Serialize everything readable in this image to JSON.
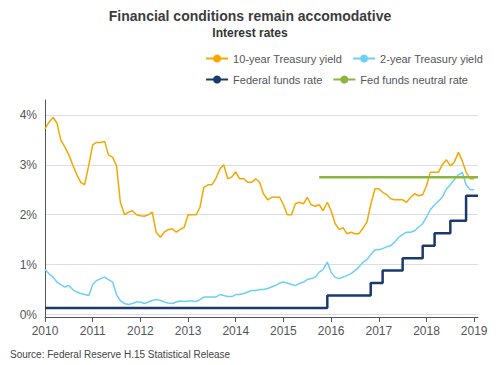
{
  "chart_data": {
    "type": "line",
    "title": "Financial conditions remain accomodative",
    "subtitle": "Interest rates",
    "annotation": "Source: Federal Reserve H.15 Statistical Release",
    "xlim": [
      2010.0,
      2019.08
    ],
    "xticks": [
      2010,
      2011,
      2012,
      2013,
      2014,
      2015,
      2016,
      2017,
      2018,
      2019
    ],
    "ylim": [
      -0.05,
      4.3
    ],
    "yticks": [
      {
        "value": 0,
        "label": "0%"
      },
      {
        "value": 1,
        "label": "1%"
      },
      {
        "value": 2,
        "label": "2%"
      },
      {
        "value": 3,
        "label": "3%"
      },
      {
        "value": 4,
        "label": "4%"
      }
    ],
    "grid": true,
    "legend": "upper right",
    "series": [
      {
        "name": "10-year Treasury yield",
        "color": "#f5a800",
        "x": [
          2010.0,
          2010.08,
          2010.17,
          2010.25,
          2010.33,
          2010.42,
          2010.5,
          2010.58,
          2010.67,
          2010.75,
          2010.83,
          2010.92,
          2011.0,
          2011.08,
          2011.17,
          2011.25,
          2011.33,
          2011.42,
          2011.5,
          2011.58,
          2011.67,
          2011.75,
          2011.83,
          2011.92,
          2012.0,
          2012.08,
          2012.17,
          2012.25,
          2012.33,
          2012.42,
          2012.5,
          2012.58,
          2012.67,
          2012.75,
          2012.83,
          2012.92,
          2013.0,
          2013.08,
          2013.17,
          2013.25,
          2013.33,
          2013.42,
          2013.5,
          2013.58,
          2013.67,
          2013.75,
          2013.83,
          2013.92,
          2014.0,
          2014.08,
          2014.17,
          2014.25,
          2014.33,
          2014.42,
          2014.5,
          2014.58,
          2014.67,
          2014.75,
          2014.83,
          2014.92,
          2015.0,
          2015.08,
          2015.17,
          2015.25,
          2015.33,
          2015.42,
          2015.5,
          2015.58,
          2015.67,
          2015.75,
          2015.83,
          2015.92,
          2016.0,
          2016.08,
          2016.17,
          2016.25,
          2016.33,
          2016.42,
          2016.5,
          2016.58,
          2016.67,
          2016.75,
          2016.83,
          2016.92,
          2017.0,
          2017.08,
          2017.17,
          2017.25,
          2017.33,
          2017.42,
          2017.5,
          2017.58,
          2017.67,
          2017.75,
          2017.83,
          2017.92,
          2018.0,
          2018.08,
          2018.17,
          2018.25,
          2018.33,
          2018.42,
          2018.5,
          2018.58,
          2018.67,
          2018.75,
          2018.83,
          2018.92,
          2019.0
        ],
        "values": [
          3.72,
          3.85,
          3.95,
          3.84,
          3.5,
          3.35,
          3.2,
          3.0,
          2.8,
          2.65,
          2.6,
          3.0,
          3.4,
          3.45,
          3.45,
          3.47,
          3.2,
          3.15,
          2.98,
          2.25,
          2.0,
          2.05,
          2.08,
          2.0,
          1.98,
          1.97,
          2.0,
          2.05,
          1.65,
          1.55,
          1.65,
          1.7,
          1.72,
          1.65,
          1.7,
          1.75,
          2.0,
          2.0,
          2.0,
          2.15,
          2.55,
          2.6,
          2.6,
          2.72,
          2.92,
          3.0,
          2.72,
          2.76,
          2.86,
          2.72,
          2.72,
          2.65,
          2.65,
          2.72,
          2.65,
          2.42,
          2.3,
          2.35,
          2.35,
          2.35,
          2.2,
          2.0,
          2.0,
          2.22,
          2.25,
          2.22,
          2.35,
          2.2,
          2.17,
          2.2,
          2.08,
          2.25,
          2.08,
          1.83,
          1.7,
          1.74,
          1.62,
          1.65,
          1.62,
          1.62,
          1.73,
          1.85,
          2.2,
          2.52,
          2.52,
          2.45,
          2.4,
          2.32,
          2.3,
          2.3,
          2.3,
          2.25,
          2.35,
          2.42,
          2.38,
          2.4,
          2.58,
          2.85,
          2.85,
          2.85,
          3.0,
          3.1,
          2.98,
          3.05,
          3.25,
          3.08,
          2.85,
          2.72,
          2.72
        ]
      },
      {
        "name": "2-year Treasury yield",
        "color": "#6ecff6",
        "x": [
          2010.0,
          2010.08,
          2010.17,
          2010.25,
          2010.33,
          2010.42,
          2010.5,
          2010.58,
          2010.67,
          2010.75,
          2010.83,
          2010.92,
          2011.0,
          2011.08,
          2011.17,
          2011.25,
          2011.33,
          2011.42,
          2011.5,
          2011.58,
          2011.67,
          2011.75,
          2011.83,
          2011.92,
          2012.0,
          2012.08,
          2012.17,
          2012.25,
          2012.33,
          2012.42,
          2012.5,
          2012.58,
          2012.67,
          2012.75,
          2012.83,
          2012.92,
          2013.0,
          2013.08,
          2013.17,
          2013.25,
          2013.33,
          2013.42,
          2013.5,
          2013.58,
          2013.67,
          2013.75,
          2013.83,
          2013.92,
          2014.0,
          2014.08,
          2014.17,
          2014.25,
          2014.33,
          2014.42,
          2014.5,
          2014.58,
          2014.67,
          2014.75,
          2014.83,
          2014.92,
          2015.0,
          2015.08,
          2015.17,
          2015.25,
          2015.33,
          2015.42,
          2015.5,
          2015.58,
          2015.67,
          2015.75,
          2015.83,
          2015.92,
          2016.0,
          2016.08,
          2016.17,
          2016.25,
          2016.33,
          2016.42,
          2016.5,
          2016.58,
          2016.67,
          2016.75,
          2016.83,
          2016.92,
          2017.0,
          2017.08,
          2017.17,
          2017.25,
          2017.33,
          2017.42,
          2017.5,
          2017.58,
          2017.67,
          2017.75,
          2017.83,
          2017.92,
          2018.0,
          2018.08,
          2018.17,
          2018.25,
          2018.33,
          2018.42,
          2018.5,
          2018.58,
          2018.67,
          2018.75,
          2018.83,
          2018.92,
          2019.0
        ],
        "values": [
          0.9,
          0.82,
          0.75,
          0.65,
          0.6,
          0.55,
          0.58,
          0.5,
          0.45,
          0.42,
          0.4,
          0.38,
          0.6,
          0.68,
          0.72,
          0.75,
          0.7,
          0.65,
          0.4,
          0.28,
          0.22,
          0.2,
          0.22,
          0.25,
          0.25,
          0.22,
          0.25,
          0.28,
          0.3,
          0.28,
          0.25,
          0.23,
          0.22,
          0.25,
          0.27,
          0.26,
          0.27,
          0.27,
          0.26,
          0.3,
          0.35,
          0.35,
          0.35,
          0.35,
          0.4,
          0.38,
          0.36,
          0.36,
          0.4,
          0.4,
          0.42,
          0.45,
          0.48,
          0.48,
          0.5,
          0.5,
          0.52,
          0.55,
          0.58,
          0.63,
          0.65,
          0.63,
          0.6,
          0.58,
          0.62,
          0.65,
          0.7,
          0.72,
          0.75,
          0.85,
          0.9,
          1.05,
          0.85,
          0.75,
          0.72,
          0.75,
          0.78,
          0.82,
          0.88,
          0.95,
          1.05,
          1.1,
          1.2,
          1.3,
          1.3,
          1.32,
          1.36,
          1.38,
          1.45,
          1.55,
          1.6,
          1.65,
          1.65,
          1.68,
          1.75,
          1.82,
          1.95,
          2.1,
          2.2,
          2.27,
          2.35,
          2.52,
          2.6,
          2.7,
          2.8,
          2.85,
          2.6,
          2.5,
          2.5
        ]
      },
      {
        "name": "Federal funds rate",
        "color": "#1a3a6b",
        "x": [
          2010.0,
          2015.92,
          2015.92,
          2016.83,
          2016.83,
          2017.08,
          2017.08,
          2017.5,
          2017.5,
          2017.92,
          2017.92,
          2018.17,
          2018.17,
          2018.5,
          2018.5,
          2018.83,
          2018.83,
          2019.08
        ],
        "values": [
          0.13,
          0.13,
          0.38,
          0.38,
          0.63,
          0.63,
          0.88,
          0.88,
          1.13,
          1.13,
          1.38,
          1.38,
          1.63,
          1.63,
          1.88,
          1.88,
          2.38,
          2.38
        ]
      },
      {
        "name": "Fed funds neutral rate",
        "color": "#8ab540",
        "x": [
          2015.75,
          2019.08
        ],
        "values": [
          2.75,
          2.75
        ]
      }
    ]
  }
}
